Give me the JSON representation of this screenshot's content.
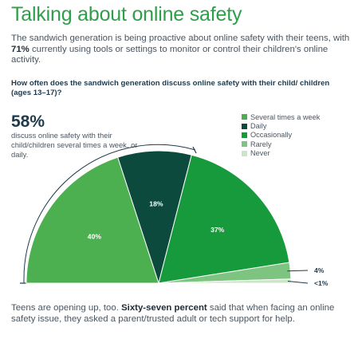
{
  "title": "Talking about online safety",
  "intro": {
    "before": "The sandwich generation is being proactive about online safety with their teens, with ",
    "bold": "71%",
    "after": " currently using tools or settings to monitor or control their children's online activity."
  },
  "question": "How often does the sandwich generation discuss online safety with their child/ children (ages 13–17)?",
  "highlight": {
    "value": "58%",
    "text": "discuss online safety with their child/children several times a week, or daily."
  },
  "footer": {
    "before": "Teens are opening up, too. ",
    "bold": "Sixty-seven percent",
    "after": " said that when facing an online safety issue, they asked a parent/trusted adult or tech support for help."
  },
  "colors": {
    "Several times a week": "#4caf50",
    "Daily": "#0d4a3e",
    "Occasionally": "#179a3b",
    "Rarely": "#7cc47f",
    "Never": "#c9e6c6"
  },
  "chart_data": {
    "type": "pie",
    "subtype": "semicircle",
    "unit": "%",
    "legend_position": "top-right",
    "slices": [
      {
        "label": "Several times a week",
        "value": 40,
        "display": "40%"
      },
      {
        "label": "Daily",
        "value": 18,
        "display": "18%"
      },
      {
        "label": "Occasionally",
        "value": 37,
        "display": "37%"
      },
      {
        "label": "Rarely",
        "value": 4,
        "display": "4%"
      },
      {
        "label": "Never",
        "value": 1,
        "display": "<1%"
      }
    ]
  }
}
